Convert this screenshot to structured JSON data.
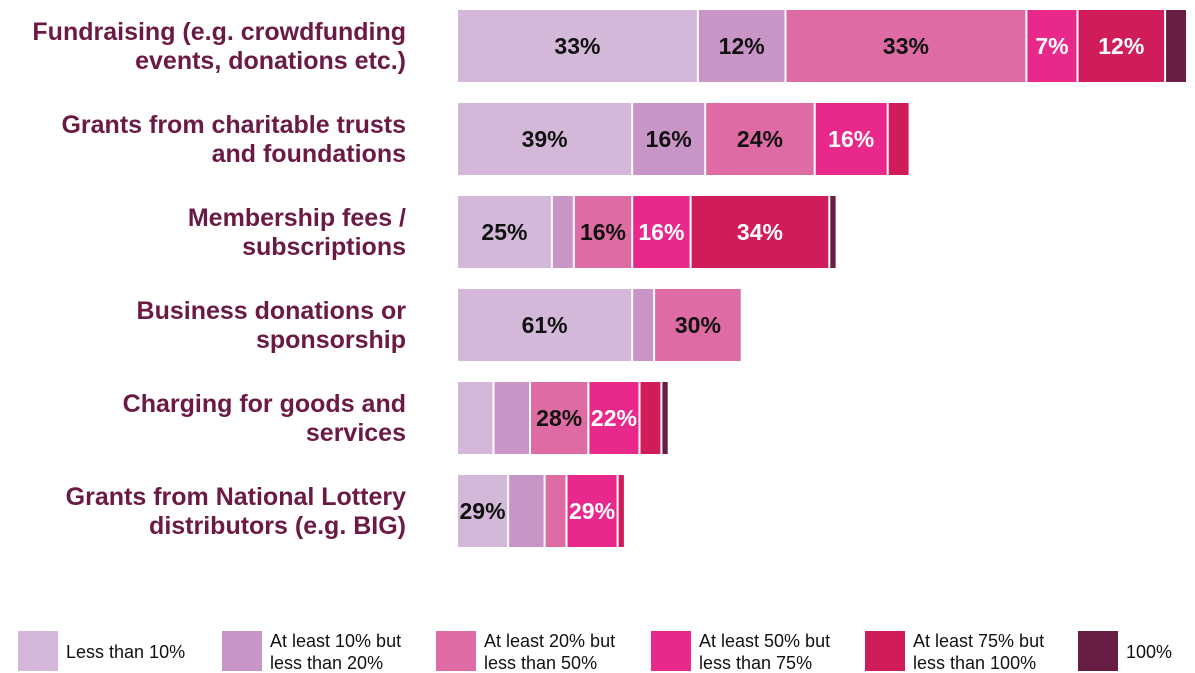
{
  "chart_data": {
    "type": "bar",
    "orientation": "horizontal",
    "stacked": true,
    "grid": false,
    "legend_position": "bottom",
    "categories": [
      "Fundraising (e.g. crowdfunding events, donations etc.)",
      "Grants from charitable trusts and foundations",
      "Membership fees / subscriptions",
      "Business donations or sponsorship",
      "Charging for goods and services",
      "Grants from National Lottery distributors (e.g. BIG)"
    ],
    "category_lines": [
      [
        "Fundraising (e.g. crowdfunding",
        "events, donations etc.)"
      ],
      [
        "Grants from charitable trusts",
        "and foundations"
      ],
      [
        "Membership fees /",
        "subscriptions"
      ],
      [
        "Business donations or",
        "sponsorship"
      ],
      [
        "Charging for goods and",
        "services"
      ],
      [
        "Grants from National Lottery",
        "distributors (e.g. BIG)"
      ]
    ],
    "series": [
      {
        "name": "Less than 10%",
        "legend_lines": [
          "Less than 10%"
        ],
        "color": "#d4b8d9",
        "text_color": "#111111",
        "values": [
          33,
          24,
          13,
          24,
          5,
          7
        ]
      },
      {
        "name": "At least 10% but less than 20%",
        "legend_lines": [
          "At least 10% but",
          "less than 20%"
        ],
        "color": "#c994c6",
        "text_color": "#111111",
        "values": [
          12,
          10,
          3,
          3,
          5,
          5
        ]
      },
      {
        "name": "At least 20% but less than 50%",
        "legend_lines": [
          "At least 20% but",
          "less than 50%"
        ],
        "color": "#df6ba5",
        "text_color": "#111111",
        "values": [
          33,
          15,
          8,
          12,
          8,
          3
        ]
      },
      {
        "name": "At least 50% but less than 75%",
        "legend_lines": [
          "At least 50% but",
          "less than 75%"
        ],
        "color": "#e8288a",
        "text_color": "#ffffff",
        "values": [
          7,
          10,
          8,
          0,
          7,
          7
        ]
      },
      {
        "name": "At least 75% but less than 100%",
        "legend_lines": [
          "At least 75% but",
          "less than 100%"
        ],
        "color": "#d01c5a",
        "text_color": "#ffffff",
        "values": [
          12,
          3,
          19,
          0,
          3,
          1
        ]
      },
      {
        "name": "100%",
        "legend_lines": [
          "100%"
        ],
        "color": "#661e45",
        "text_color": "#ffffff",
        "values": [
          3,
          0,
          1,
          0,
          1,
          0
        ]
      }
    ],
    "data_labels": [
      [
        "33%",
        "12%",
        "33%",
        "7%",
        "12%",
        ""
      ],
      [
        "39%",
        "16%",
        "24%",
        "16%",
        "",
        ""
      ],
      [
        "25%",
        "",
        "16%",
        "16%",
        "34%",
        ""
      ],
      [
        "61%",
        "",
        "30%",
        "",
        "",
        ""
      ],
      [
        "",
        "",
        "28%",
        "22%",
        "",
        ""
      ],
      [
        "29%",
        "",
        "",
        "29%",
        "",
        ""
      ]
    ]
  }
}
